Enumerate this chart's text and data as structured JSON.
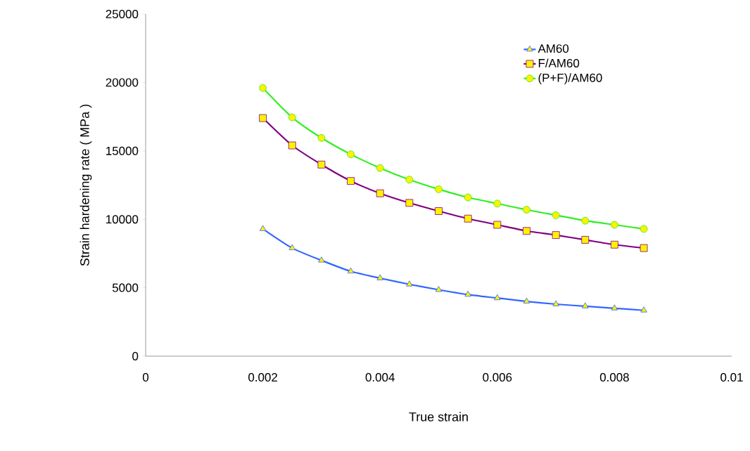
{
  "chart_data": {
    "type": "line",
    "xlabel": "True strain",
    "ylabel": "Strain hardening rate ( MPa )",
    "x": [
      0.002,
      0.0025,
      0.003,
      0.0035,
      0.004,
      0.0045,
      0.005,
      0.0055,
      0.006,
      0.0065,
      0.007,
      0.0075,
      0.008,
      0.0085
    ],
    "series": [
      {
        "name": "AM60",
        "color": "#3366ff",
        "marker": "triangle",
        "values": [
          9300,
          7900,
          7000,
          6200,
          5700,
          5250,
          4850,
          4500,
          4250,
          4000,
          3800,
          3650,
          3500,
          3350
        ]
      },
      {
        "name": "F/AM60",
        "color": "#800080",
        "marker": "square",
        "values": [
          17400,
          15400,
          14000,
          12800,
          11900,
          11200,
          10600,
          10050,
          9600,
          9150,
          8850,
          8500,
          8150,
          7900
        ]
      },
      {
        "name": "(P+F)/AM60",
        "color": "#33ee22",
        "marker": "circle",
        "values": [
          19600,
          17450,
          15950,
          14750,
          13750,
          12900,
          12200,
          11600,
          11150,
          10700,
          10300,
          9900,
          9600,
          9300
        ]
      }
    ],
    "xlim": [
      0,
      0.01
    ],
    "xticks": [
      0,
      0.002,
      0.004,
      0.006,
      0.008,
      0.01
    ],
    "ylim": [
      0,
      25000
    ],
    "yticks": [
      0,
      5000,
      10000,
      15000,
      20000,
      25000
    ],
    "grid": false,
    "legend": "top right",
    "line_style": "solid"
  }
}
